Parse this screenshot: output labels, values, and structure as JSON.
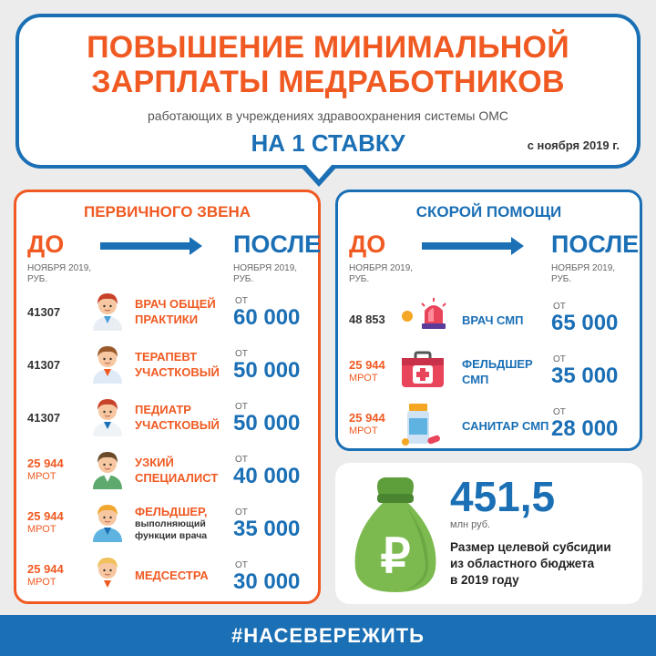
{
  "header": {
    "title_line1": "ПОВЫШЕНИЕ МИНИМАЛЬНОЙ",
    "title_line2": "ЗАРПЛАТЫ МЕДРАБОТНИКОВ",
    "subtitle": "работающих в учреждениях здравоохранения системы ОМС",
    "stavka": "НА 1 СТАВКУ",
    "date": "с ноября 2019 г."
  },
  "primary": {
    "title": "ПЕРВИЧНОГО ЗВЕНА",
    "before_label": "ДО",
    "before_sub": "НОЯБРЯ 2019,",
    "before_unit": "РУБ.",
    "after_label": "ПОСЛЕ",
    "after_sub": "НОЯБРЯ 2019,",
    "after_unit": "РУБ.",
    "rows": [
      {
        "old": "41307",
        "mrot": "",
        "prof1": "ВРАЧ ОБЩЕЙ",
        "prof2": "ПРАКТИКИ",
        "prof3": "",
        "ot": "ОТ",
        "new": "60 000",
        "icon": "doctor-icon"
      },
      {
        "old": "41307",
        "mrot": "",
        "prof1": "ТЕРАПЕВТ",
        "prof2": "УЧАСТКОВЫЙ",
        "prof3": "",
        "ot": "ОТ",
        "new": "50 000",
        "icon": "therapist-icon"
      },
      {
        "old": "41307",
        "mrot": "",
        "prof1": "ПЕДИАТР",
        "prof2": "УЧАСТКОВЫЙ",
        "prof3": "",
        "ot": "ОТ",
        "new": "50 000",
        "icon": "pediatrician-icon"
      },
      {
        "old": "25 944",
        "mrot": "МРОТ",
        "prof1": "УЗКИЙ",
        "prof2": "СПЕЦИАЛИСТ",
        "prof3": "",
        "ot": "ОТ",
        "new": "40 000",
        "icon": "specialist-icon"
      },
      {
        "old": "25 944",
        "mrot": "МРОТ",
        "prof1": "ФЕЛЬДШЕР,",
        "prof2": "выполняющий",
        "prof3": "функции врача",
        "ot": "ОТ",
        "new": "35 000",
        "icon": "paramedic-icon"
      },
      {
        "old": "25 944",
        "mrot": "МРОТ",
        "prof1": "МЕДСЕСТРА",
        "prof2": "",
        "prof3": "",
        "ot": "ОТ",
        "new": "30 000",
        "icon": "nurse-icon"
      }
    ]
  },
  "emergency": {
    "title": "СКОРОЙ ПОМОЩИ",
    "before_label": "ДО",
    "before_sub": "НОЯБРЯ 2019,",
    "before_unit": "РУБ.",
    "after_label": "ПОСЛЕ",
    "after_sub": "НОЯБРЯ 2019,",
    "after_unit": "РУБ.",
    "rows": [
      {
        "old": "48 853",
        "mrot": "",
        "prof1": "ВРАЧ СМП",
        "prof2": "",
        "ot": "ОТ",
        "new": "65 000",
        "icon": "siren-icon"
      },
      {
        "old": "25 944",
        "mrot": "МРОТ",
        "prof1": "ФЕЛЬДШЕР",
        "prof2": "СМП",
        "ot": "ОТ",
        "new": "35 000",
        "icon": "first-aid-kit-icon"
      },
      {
        "old": "25 944",
        "mrot": "МРОТ",
        "prof1": "САНИТАР СМП",
        "prof2": "",
        "ot": "ОТ",
        "new": "28 000",
        "icon": "medicine-bottle-icon"
      }
    ]
  },
  "subsidy": {
    "amount": "451,5",
    "unit": "млн руб.",
    "desc1": "Размер целевой субсидии",
    "desc2": "из областного бюджета",
    "desc3": "в 2019 году",
    "icon": "money-bag-icon"
  },
  "footer": {
    "hashtag": "#НАСЕВЕРЕЖИТЬ"
  },
  "colors": {
    "accent_orange": "#f05a22",
    "accent_blue": "#1a6fb5",
    "background": "#ececec"
  }
}
